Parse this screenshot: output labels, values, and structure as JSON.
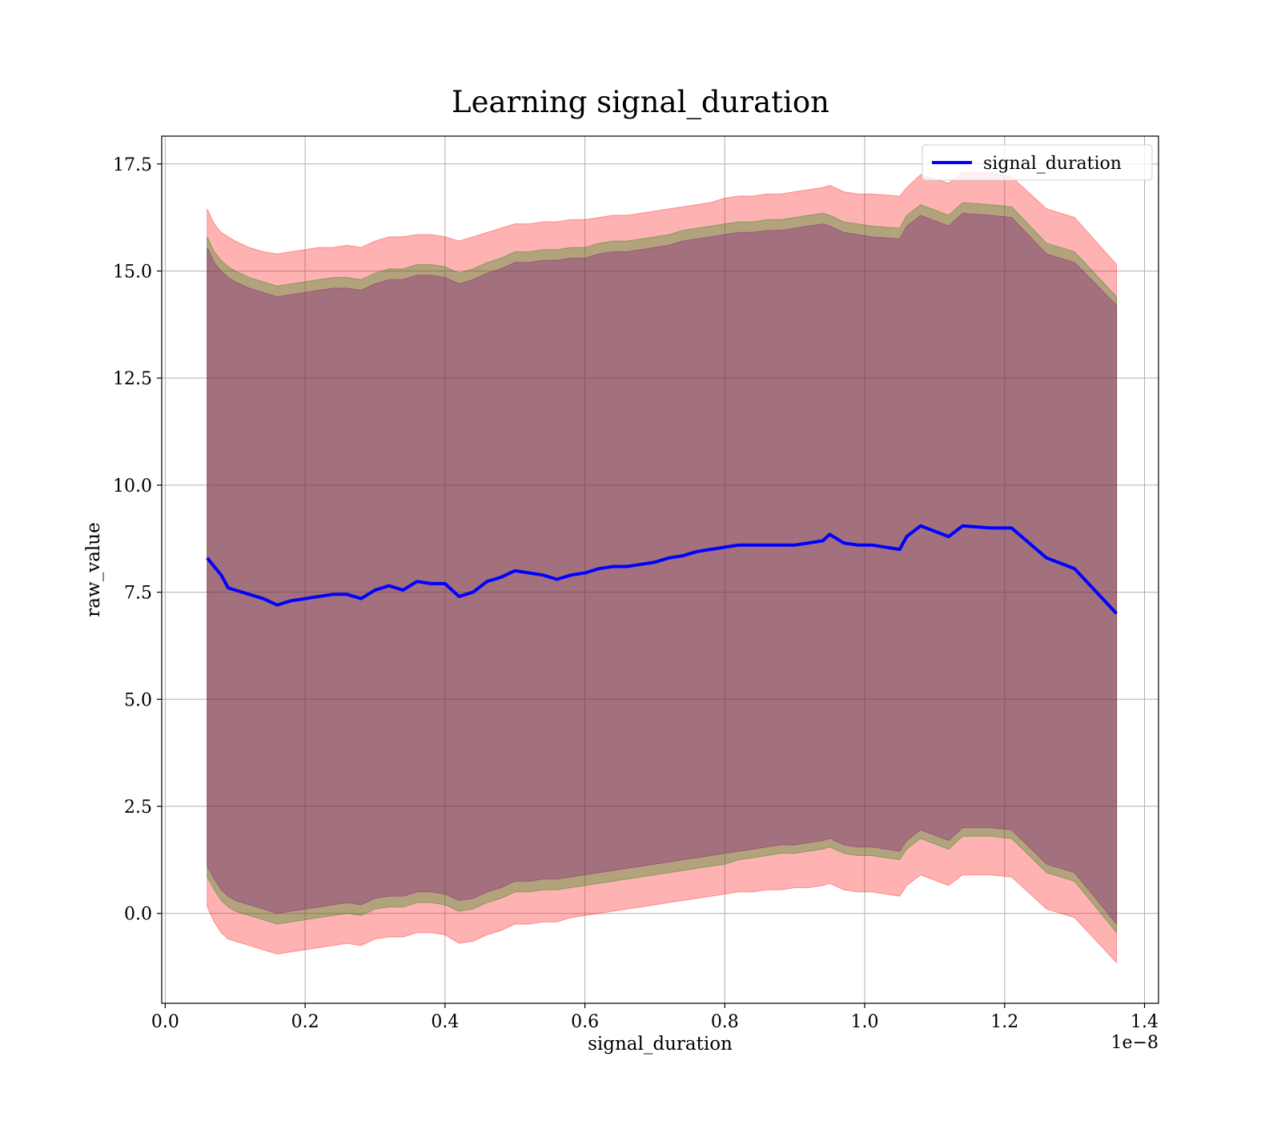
{
  "chart_data": {
    "type": "line",
    "title": "Learning signal_duration",
    "xlabel": "signal_duration",
    "ylabel": "raw_value",
    "x_offset_label": "1e−8",
    "x_scale": 1e-08,
    "xlim": [
      -0.005,
      1.42
    ],
    "ylim": [
      -2.1,
      18.15
    ],
    "x_ticks": [
      0.0,
      0.2,
      0.4,
      0.6,
      0.8,
      1.0,
      1.2,
      1.4
    ],
    "x_tick_labels": [
      "0.0",
      "0.2",
      "0.4",
      "0.6",
      "0.8",
      "1.0",
      "1.2",
      "1.4"
    ],
    "y_ticks": [
      0.0,
      2.5,
      5.0,
      7.5,
      10.0,
      12.5,
      15.0,
      17.5
    ],
    "y_tick_labels": [
      "0.0",
      "2.5",
      "5.0",
      "7.5",
      "10.0",
      "12.5",
      "15.0",
      "17.5"
    ],
    "grid": true,
    "legend": {
      "position": "top-right",
      "entries": [
        "signal_duration"
      ]
    },
    "x": [
      0.06,
      0.07,
      0.08,
      0.09,
      0.1,
      0.12,
      0.14,
      0.16,
      0.18,
      0.2,
      0.22,
      0.24,
      0.26,
      0.28,
      0.3,
      0.32,
      0.34,
      0.36,
      0.38,
      0.4,
      0.42,
      0.44,
      0.46,
      0.48,
      0.5,
      0.52,
      0.54,
      0.56,
      0.58,
      0.6,
      0.62,
      0.64,
      0.66,
      0.68,
      0.7,
      0.72,
      0.74,
      0.76,
      0.78,
      0.8,
      0.82,
      0.84,
      0.86,
      0.88,
      0.9,
      0.92,
      0.94,
      0.95,
      0.97,
      0.99,
      1.01,
      1.05,
      1.06,
      1.08,
      1.12,
      1.14,
      1.18,
      1.21,
      1.26,
      1.3,
      1.36
    ],
    "series": [
      {
        "name": "signal_duration",
        "color": "#0000ff",
        "values": [
          8.3,
          8.1,
          7.9,
          7.6,
          7.55,
          7.45,
          7.35,
          7.2,
          7.3,
          7.35,
          7.4,
          7.45,
          7.45,
          7.35,
          7.55,
          7.65,
          7.55,
          7.75,
          7.7,
          7.7,
          7.4,
          7.5,
          7.75,
          7.85,
          8.0,
          7.95,
          7.9,
          7.8,
          7.9,
          7.95,
          8.05,
          8.1,
          8.1,
          8.15,
          8.2,
          8.3,
          8.35,
          8.45,
          8.5,
          8.55,
          8.6,
          8.6,
          8.6,
          8.6,
          8.6,
          8.65,
          8.7,
          8.85,
          8.65,
          8.6,
          8.6,
          8.5,
          8.8,
          9.05,
          8.8,
          9.05,
          9.0,
          9.0,
          8.3,
          8.05,
          7.0
        ]
      }
    ],
    "bands": [
      {
        "color": "#ff0000",
        "opacity": 0.3,
        "upper": [
          16.45,
          16.1,
          15.9,
          15.8,
          15.7,
          15.55,
          15.45,
          15.4,
          15.45,
          15.5,
          15.55,
          15.55,
          15.6,
          15.55,
          15.7,
          15.8,
          15.8,
          15.85,
          15.85,
          15.8,
          15.7,
          15.8,
          15.9,
          16.0,
          16.1,
          16.1,
          16.15,
          16.15,
          16.2,
          16.2,
          16.25,
          16.3,
          16.3,
          16.35,
          16.4,
          16.45,
          16.5,
          16.55,
          16.6,
          16.7,
          16.75,
          16.75,
          16.8,
          16.8,
          16.85,
          16.9,
          16.95,
          17.0,
          16.85,
          16.8,
          16.8,
          16.75,
          16.95,
          17.25,
          17.05,
          17.3,
          17.3,
          17.2,
          16.45,
          16.25,
          15.15
        ],
        "lower": [
          0.15,
          -0.2,
          -0.45,
          -0.6,
          -0.65,
          -0.75,
          -0.85,
          -0.95,
          -0.9,
          -0.85,
          -0.8,
          -0.75,
          -0.7,
          -0.75,
          -0.6,
          -0.55,
          -0.55,
          -0.45,
          -0.45,
          -0.5,
          -0.7,
          -0.65,
          -0.5,
          -0.4,
          -0.25,
          -0.25,
          -0.2,
          -0.2,
          -0.1,
          -0.05,
          0.0,
          0.05,
          0.1,
          0.15,
          0.2,
          0.25,
          0.3,
          0.35,
          0.4,
          0.45,
          0.5,
          0.5,
          0.55,
          0.55,
          0.6,
          0.6,
          0.65,
          0.7,
          0.55,
          0.5,
          0.5,
          0.4,
          0.65,
          0.9,
          0.65,
          0.9,
          0.9,
          0.85,
          0.1,
          -0.1,
          -1.15
        ]
      },
      {
        "color": "#008000",
        "opacity": 0.3,
        "upper": [
          15.8,
          15.45,
          15.25,
          15.1,
          15.0,
          14.85,
          14.75,
          14.65,
          14.7,
          14.75,
          14.8,
          14.85,
          14.85,
          14.8,
          14.95,
          15.05,
          15.05,
          15.15,
          15.15,
          15.1,
          14.95,
          15.05,
          15.2,
          15.3,
          15.45,
          15.45,
          15.5,
          15.5,
          15.55,
          15.55,
          15.65,
          15.7,
          15.7,
          15.75,
          15.8,
          15.85,
          15.95,
          16.0,
          16.05,
          16.1,
          16.15,
          16.15,
          16.2,
          16.2,
          16.25,
          16.3,
          16.35,
          16.3,
          16.15,
          16.1,
          16.05,
          16.0,
          16.3,
          16.55,
          16.3,
          16.6,
          16.55,
          16.5,
          15.65,
          15.45,
          14.4
        ],
        "lower": [
          0.85,
          0.55,
          0.3,
          0.15,
          0.05,
          -0.05,
          -0.15,
          -0.25,
          -0.2,
          -0.15,
          -0.1,
          -0.05,
          0.0,
          -0.05,
          0.1,
          0.15,
          0.15,
          0.25,
          0.25,
          0.2,
          0.05,
          0.1,
          0.25,
          0.35,
          0.5,
          0.5,
          0.55,
          0.55,
          0.6,
          0.65,
          0.7,
          0.75,
          0.8,
          0.85,
          0.9,
          0.95,
          1.0,
          1.05,
          1.1,
          1.15,
          1.25,
          1.3,
          1.35,
          1.4,
          1.4,
          1.45,
          1.5,
          1.55,
          1.4,
          1.35,
          1.35,
          1.25,
          1.5,
          1.75,
          1.5,
          1.8,
          1.8,
          1.75,
          0.95,
          0.75,
          -0.45
        ]
      },
      {
        "color": "#800080",
        "opacity": 0.3,
        "upper": [
          15.55,
          15.2,
          15.0,
          14.85,
          14.75,
          14.6,
          14.5,
          14.4,
          14.45,
          14.5,
          14.55,
          14.6,
          14.6,
          14.55,
          14.7,
          14.8,
          14.8,
          14.9,
          14.9,
          14.85,
          14.7,
          14.8,
          14.95,
          15.05,
          15.2,
          15.2,
          15.25,
          15.25,
          15.3,
          15.3,
          15.4,
          15.45,
          15.45,
          15.5,
          15.55,
          15.6,
          15.7,
          15.75,
          15.8,
          15.85,
          15.9,
          15.9,
          15.95,
          15.95,
          16.0,
          16.05,
          16.1,
          16.05,
          15.9,
          15.85,
          15.8,
          15.75,
          16.05,
          16.3,
          16.05,
          16.35,
          16.3,
          16.25,
          15.4,
          15.2,
          14.2
        ],
        "lower": [
          1.1,
          0.8,
          0.55,
          0.4,
          0.3,
          0.2,
          0.1,
          0.0,
          0.05,
          0.1,
          0.15,
          0.2,
          0.25,
          0.2,
          0.35,
          0.4,
          0.4,
          0.5,
          0.5,
          0.45,
          0.3,
          0.35,
          0.5,
          0.6,
          0.75,
          0.75,
          0.8,
          0.8,
          0.85,
          0.9,
          0.95,
          1.0,
          1.05,
          1.1,
          1.15,
          1.2,
          1.25,
          1.3,
          1.35,
          1.4,
          1.45,
          1.5,
          1.55,
          1.6,
          1.6,
          1.65,
          1.7,
          1.75,
          1.6,
          1.55,
          1.55,
          1.45,
          1.7,
          1.95,
          1.7,
          2.0,
          2.0,
          1.95,
          1.15,
          0.95,
          -0.25
        ]
      }
    ]
  }
}
